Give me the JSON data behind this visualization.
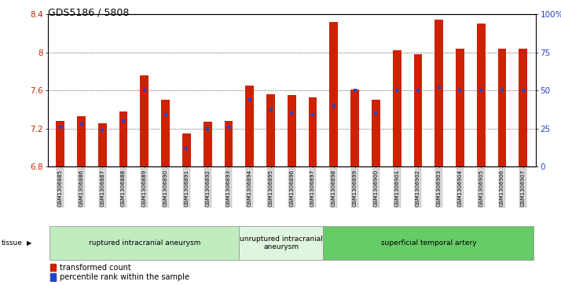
{
  "title": "GDS5186 / 5808",
  "samples": [
    "GSM1306885",
    "GSM1306886",
    "GSM1306887",
    "GSM1306888",
    "GSM1306889",
    "GSM1306890",
    "GSM1306891",
    "GSM1306892",
    "GSM1306893",
    "GSM1306894",
    "GSM1306895",
    "GSM1306896",
    "GSM1306897",
    "GSM1306898",
    "GSM1306899",
    "GSM1306900",
    "GSM1306901",
    "GSM1306902",
    "GSM1306903",
    "GSM1306904",
    "GSM1306905",
    "GSM1306906",
    "GSM1306907"
  ],
  "red_values": [
    7.28,
    7.33,
    7.26,
    7.38,
    7.76,
    7.5,
    7.15,
    7.27,
    7.28,
    7.65,
    7.56,
    7.55,
    7.53,
    8.32,
    7.61,
    7.5,
    8.02,
    7.98,
    8.34,
    8.04,
    8.3,
    8.04,
    8.04
  ],
  "blue_percentiles": [
    26,
    28,
    24,
    30,
    50,
    34,
    12,
    25,
    26,
    44,
    37,
    35,
    34,
    40,
    50,
    35,
    50,
    50,
    52,
    50,
    50,
    50,
    50
  ],
  "ylim_left": [
    6.8,
    8.4
  ],
  "ylim_right": [
    0,
    100
  ],
  "yticks_left": [
    6.8,
    7.2,
    7.6,
    8.0,
    8.4
  ],
  "ytick_labels_left": [
    "6.8",
    "7.2",
    "7.6",
    "8",
    "8.4"
  ],
  "yticks_right": [
    0,
    25,
    50,
    75,
    100
  ],
  "ytick_labels_right": [
    "0",
    "25",
    "50",
    "75",
    "100%"
  ],
  "groups": [
    {
      "label": "ruptured intracranial aneurysm",
      "start": 0,
      "end": 9,
      "color": "#c0ecc0"
    },
    {
      "label": "unruptured intracranial\naneurysm",
      "start": 9,
      "end": 13,
      "color": "#e0f5e0"
    },
    {
      "label": "superficial temporal artery",
      "start": 13,
      "end": 23,
      "color": "#66cc66"
    }
  ],
  "bar_color": "#cc2200",
  "blue_color": "#2244cc",
  "bar_width": 0.4,
  "tissue_label": "tissue",
  "legend_red": "transformed count",
  "legend_blue": "percentile rank within the sample"
}
